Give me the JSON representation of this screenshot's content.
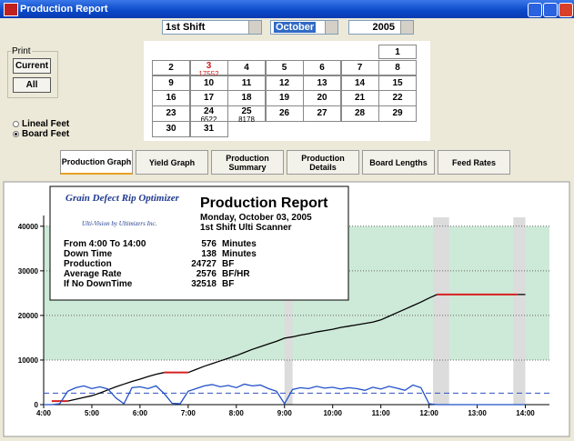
{
  "window": {
    "title": "Production Report"
  },
  "controls": {
    "shift": "1st Shift",
    "month": "October",
    "year": 2005
  },
  "print": {
    "label": "Print",
    "buttons": [
      "Current",
      "All"
    ]
  },
  "units": {
    "options": [
      "Lineal Feet",
      "Board Feet"
    ],
    "selected": 1
  },
  "calendar": {
    "weeks": [
      [
        null,
        null,
        null,
        null,
        null,
        null,
        1
      ],
      [
        2,
        {
          "day": 3,
          "value": 17552,
          "highlight": true
        },
        4,
        5,
        6,
        7,
        8
      ],
      [
        9,
        10,
        11,
        12,
        13,
        14,
        15
      ],
      [
        16,
        17,
        18,
        19,
        20,
        21,
        22
      ],
      [
        23,
        {
          "day": 24,
          "value": 6522
        },
        {
          "day": 25,
          "value": 8178
        },
        26,
        27,
        28,
        29
      ],
      [
        30,
        31,
        null,
        null,
        null,
        null,
        null
      ]
    ]
  },
  "tabs": {
    "items": [
      "Production Graph",
      "Yield Graph",
      "Production Summary",
      "Production Details",
      "Board Lengths",
      "Feed Rates"
    ],
    "active": 0
  },
  "report": {
    "product": "Grain Defect Rip Optimizer",
    "vendor": "Ulti-Vision by Ultimizers Inc.",
    "heading": "Production Report",
    "date": "Monday, October 03, 2005",
    "shift": "1st Shift  Ulti Scanner",
    "stats": [
      {
        "label": "From 4:00 To 14:00",
        "value": 576,
        "unit": "Minutes"
      },
      {
        "label": "Down Time",
        "value": 138,
        "unit": "Minutes"
      },
      {
        "label": "Production",
        "value": 24727,
        "unit": "BF"
      },
      {
        "label": "Average Rate",
        "value": 2576,
        "unit": "BF/HR"
      },
      {
        "label": "If No DownTime",
        "value": 32518,
        "unit": "BF"
      }
    ]
  },
  "chart_data": {
    "type": "line",
    "x": [
      240,
      250,
      260,
      270,
      280,
      290,
      300,
      310,
      320,
      330,
      340,
      350,
      360,
      370,
      380,
      390,
      400,
      410,
      420,
      430,
      440,
      450,
      460,
      470,
      480,
      490,
      500,
      510,
      520,
      530,
      540,
      550,
      560,
      570,
      580,
      590,
      600,
      610,
      620,
      630,
      640,
      650,
      660,
      670,
      680,
      690,
      700,
      710,
      720,
      730,
      740,
      750,
      760,
      770,
      780,
      790,
      800,
      810,
      820,
      830,
      840
    ],
    "xlim": [
      240,
      870
    ],
    "xticks": [
      {
        "value": 240,
        "label": "4:00"
      },
      {
        "value": 300,
        "label": "5:00"
      },
      {
        "value": 360,
        "label": "6:00"
      },
      {
        "value": 420,
        "label": "7:00"
      },
      {
        "value": 480,
        "label": "8:00"
      },
      {
        "value": 540,
        "label": "9:00"
      },
      {
        "value": 600,
        "label": "10:00"
      },
      {
        "value": 660,
        "label": "11:00"
      },
      {
        "value": 720,
        "label": "12:00"
      },
      {
        "value": 780,
        "label": "13:00"
      },
      {
        "value": 840,
        "label": "14:00"
      }
    ],
    "ylim": [
      0,
      42000
    ],
    "yticks": [
      0,
      10000,
      20000,
      30000,
      40000
    ],
    "grid": true,
    "target_band": [
      10000,
      40000
    ],
    "band_color": "#cde9d8",
    "downtime_bands": [
      [
        540,
        550
      ],
      [
        725,
        745
      ],
      [
        825,
        840
      ]
    ],
    "downtime_color": "#dcdcdc",
    "series": [
      {
        "color": "#000000",
        "values": [
          null,
          null,
          null,
          800,
          1200,
          1600,
          2000,
          2600,
          3300,
          4000,
          4600,
          5200,
          5700,
          6300,
          6800,
          7200,
          null,
          null,
          7200,
          7900,
          8600,
          9200,
          9800,
          10400,
          11000,
          11700,
          12400,
          13000,
          13600,
          14200,
          14900,
          15200,
          15600,
          15900,
          16300,
          16600,
          16900,
          17300,
          17600,
          17900,
          18200,
          18500,
          19000,
          19800,
          20600,
          21400,
          22200,
          23000,
          23900,
          24700,
          null,
          null,
          null,
          null,
          null,
          null,
          null,
          null,
          null,
          24700,
          24700
        ]
      },
      {
        "color": "#d62020",
        "values": [
          null,
          800,
          800,
          800,
          null,
          null,
          null,
          null,
          null,
          null,
          null,
          null,
          null,
          null,
          null,
          7200,
          7200,
          7200,
          7200,
          null,
          null,
          null,
          null,
          null,
          null,
          null,
          null,
          null,
          null,
          null,
          null,
          null,
          null,
          null,
          null,
          null,
          null,
          null,
          null,
          null,
          null,
          null,
          null,
          null,
          null,
          null,
          null,
          null,
          null,
          24700,
          24700,
          24700,
          24700,
          24700,
          24700,
          24700,
          24700,
          24700,
          24700,
          24700,
          null
        ]
      },
      {
        "color": "#2050c8",
        "values": [
          0,
          0,
          200,
          3000,
          3800,
          4200,
          3600,
          4000,
          3500,
          1500,
          200,
          3800,
          4000,
          3600,
          4200,
          2500,
          300,
          200,
          3000,
          3600,
          4200,
          4500,
          4000,
          4300,
          3800,
          4600,
          4200,
          4400,
          3600,
          3000,
          200,
          3400,
          3800,
          3600,
          4100,
          3700,
          3900,
          3500,
          3800,
          3600,
          3200,
          3900,
          3500,
          4100,
          3700,
          3200,
          4400,
          3800,
          200,
          0,
          0,
          0,
          0,
          0,
          0,
          0,
          0,
          0,
          0,
          0,
          0
        ]
      }
    ],
    "average_color": "#3050c0"
  }
}
